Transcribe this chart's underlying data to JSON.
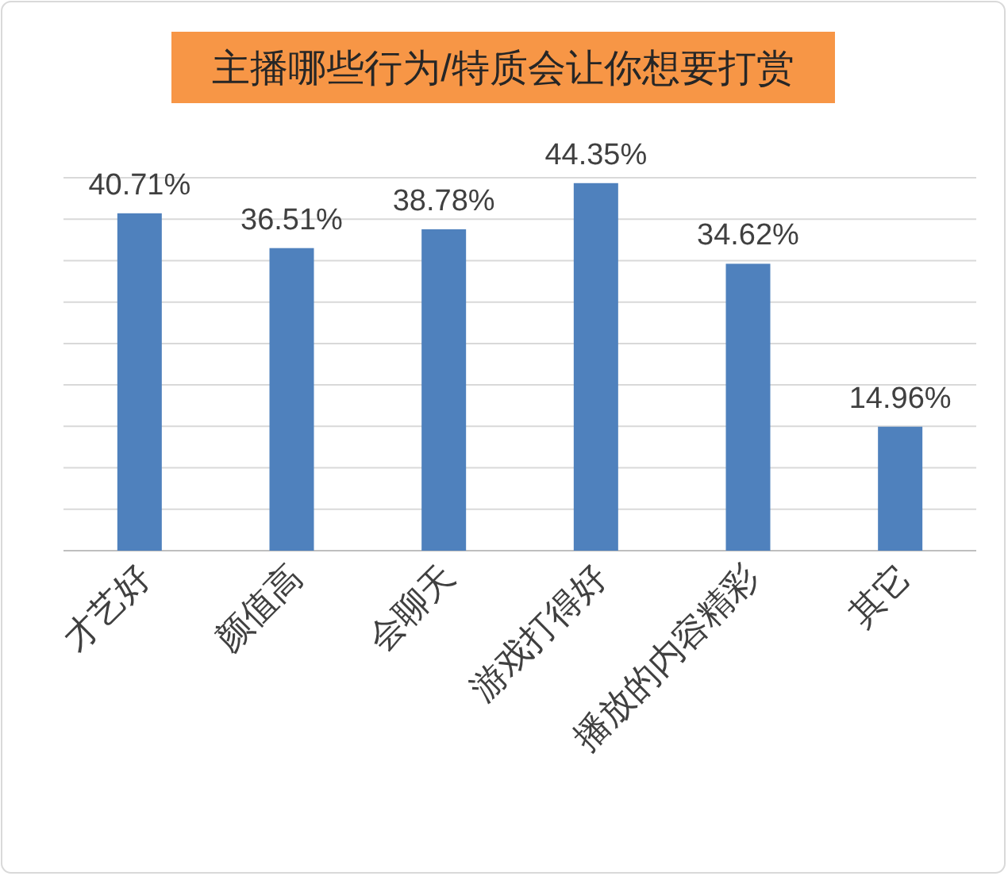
{
  "chart_data": {
    "type": "bar",
    "title": "主播哪些行为/特质会让你想要打赏",
    "categories": [
      "才艺好",
      "颜值高",
      "会聊天",
      "游戏打得好",
      "播放的内容精彩",
      "其它"
    ],
    "values": [
      40.71,
      36.51,
      38.78,
      44.35,
      34.62,
      14.96
    ],
    "value_labels": [
      "40.71%",
      "36.51%",
      "38.78%",
      "44.35%",
      "34.62%",
      "14.96%"
    ],
    "color": "#4f81bd",
    "ylim": [
      0,
      45
    ],
    "yticks": [
      {
        "value": 0,
        "label": null
      },
      {
        "value": 5,
        "label": null
      },
      {
        "value": 10,
        "label": null
      },
      {
        "value": 15,
        "label": null
      },
      {
        "value": 20,
        "label": null
      },
      {
        "value": 25,
        "label": null
      },
      {
        "value": 30,
        "label": null
      },
      {
        "value": 35,
        "label": null
      },
      {
        "value": 40,
        "label": null
      },
      {
        "value": 45,
        "label": null
      }
    ],
    "grid": "y",
    "tick_labels": "x"
  }
}
